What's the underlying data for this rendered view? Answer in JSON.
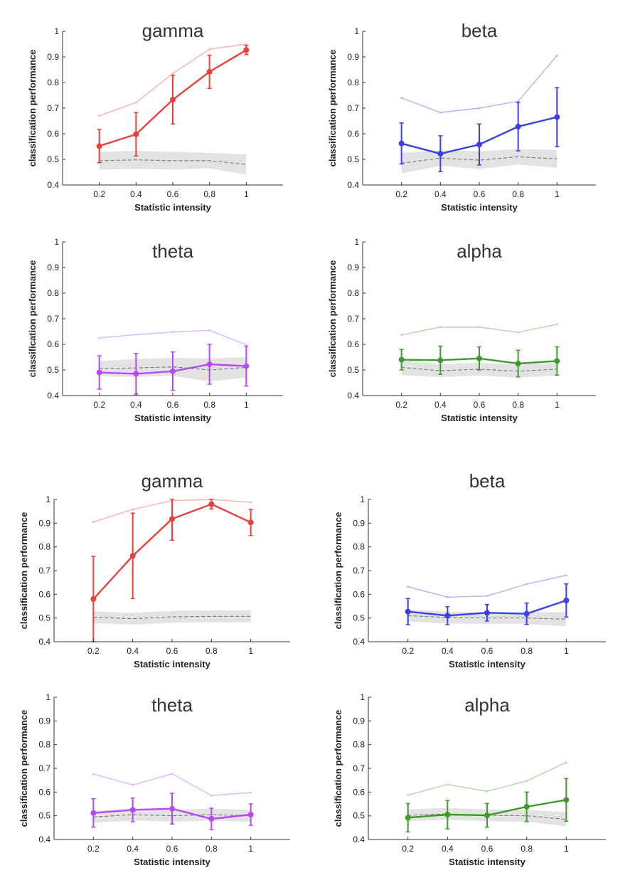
{
  "chart_data": [
    {
      "type": "line",
      "title": "gamma",
      "xlabel": "Statistic intensity",
      "ylabel": "classification performance",
      "x": [
        0.2,
        0.4,
        0.6,
        0.8,
        1
      ],
      "xticks": [
        "0.2",
        "0.4",
        "0.6",
        "0.8",
        "1"
      ],
      "yticks": [
        "0.4",
        "0.5",
        "0.6",
        "0.7",
        "0.8",
        "0.9",
        "1"
      ],
      "xlim": [
        0,
        1.2
      ],
      "ylim": [
        0.4,
        1
      ],
      "color": "#e8403a",
      "series": [
        {
          "role": "mean",
          "values": [
            0.552,
            0.598,
            0.733,
            0.842,
            0.927
          ],
          "error": [
            0.065,
            0.085,
            0.095,
            0.065,
            0.018
          ]
        },
        {
          "role": "max",
          "values": [
            0.67,
            0.722,
            0.835,
            0.93,
            0.95
          ]
        },
        {
          "role": "chance",
          "values": [
            0.495,
            0.498,
            0.495,
            0.495,
            0.48
          ],
          "band": [
            0.035,
            0.035,
            0.035,
            0.03,
            0.04
          ]
        }
      ]
    },
    {
      "type": "line",
      "title": "beta",
      "xlabel": "Statistic intensity",
      "ylabel": "classification performance",
      "x": [
        0.2,
        0.4,
        0.6,
        0.8,
        1
      ],
      "xticks": [
        "0.2",
        "0.4",
        "0.6",
        "0.8",
        "1"
      ],
      "yticks": [
        "0.4",
        "0.5",
        "0.6",
        "0.7",
        "0.8",
        "0.9",
        "1"
      ],
      "xlim": [
        0,
        1.2
      ],
      "ylim": [
        0.4,
        1
      ],
      "color": "#3b3fe6",
      "series": [
        {
          "role": "mean",
          "values": [
            0.562,
            0.522,
            0.558,
            0.628,
            0.665
          ],
          "error": [
            0.08,
            0.07,
            0.08,
            0.095,
            0.115
          ]
        },
        {
          "role": "max",
          "values": [
            0.74,
            0.683,
            0.7,
            0.727,
            0.905
          ]
        },
        {
          "role": "chance",
          "values": [
            0.485,
            0.505,
            0.497,
            0.51,
            0.502
          ],
          "band": [
            0.04,
            0.03,
            0.035,
            0.03,
            0.035
          ]
        }
      ]
    },
    {
      "type": "line",
      "title": "theta",
      "xlabel": "Statistic intensity",
      "ylabel": "classification performance",
      "x": [
        0.2,
        0.4,
        0.6,
        0.8,
        1
      ],
      "xticks": [
        "0.2",
        "0.4",
        "0.6",
        "0.8",
        "1"
      ],
      "yticks": [
        "0.4",
        "0.5",
        "0.6",
        "0.7",
        "0.8",
        "0.9",
        "1"
      ],
      "xlim": [
        0,
        1.2
      ],
      "ylim": [
        0.4,
        1
      ],
      "color": "#b44bf0",
      "series": [
        {
          "role": "mean",
          "values": [
            0.49,
            0.485,
            0.495,
            0.522,
            0.515
          ],
          "error": [
            0.065,
            0.08,
            0.075,
            0.078,
            0.078
          ]
        },
        {
          "role": "max",
          "values": [
            0.625,
            0.638,
            0.648,
            0.655,
            0.598
          ]
        },
        {
          "role": "chance",
          "values": [
            0.505,
            0.508,
            0.512,
            0.5,
            0.51
          ],
          "band": [
            0.03,
            0.035,
            0.035,
            0.045,
            0.04
          ]
        }
      ]
    },
    {
      "type": "line",
      "title": "alpha",
      "xlabel": "Statistic intensity",
      "ylabel": "classification performance",
      "x": [
        0.2,
        0.4,
        0.6,
        0.8,
        1
      ],
      "xticks": [
        "0.2",
        "0.4",
        "0.6",
        "0.8",
        "1"
      ],
      "yticks": [
        "0.4",
        "0.5",
        "0.6",
        "0.7",
        "0.8",
        "0.9",
        "1"
      ],
      "xlim": [
        0,
        1.2
      ],
      "ylim": [
        0.4,
        1
      ],
      "color": "#3f9a2c",
      "series": [
        {
          "role": "mean",
          "values": [
            0.54,
            0.538,
            0.545,
            0.525,
            0.535
          ],
          "error": [
            0.04,
            0.055,
            0.045,
            0.052,
            0.055
          ]
        },
        {
          "role": "max",
          "values": [
            0.637,
            0.667,
            0.667,
            0.647,
            0.678
          ]
        },
        {
          "role": "chance",
          "values": [
            0.51,
            0.497,
            0.503,
            0.495,
            0.503
          ],
          "band": [
            0.03,
            0.025,
            0.025,
            0.025,
            0.025
          ]
        }
      ]
    },
    {
      "type": "line",
      "title": "gamma",
      "xlabel": "Statistic intensity",
      "ylabel": "classification performance",
      "x": [
        0.2,
        0.4,
        0.6,
        0.8,
        1
      ],
      "xticks": [
        "0.2",
        "0.4",
        "0.6",
        "0.8",
        "1"
      ],
      "yticks": [
        "0.4",
        "0.5",
        "0.6",
        "0.7",
        "0.8",
        "0.9",
        "1"
      ],
      "xlim": [
        0,
        1.2
      ],
      "ylim": [
        0.4,
        1
      ],
      "color": "#e8403a",
      "series": [
        {
          "role": "mean",
          "values": [
            0.58,
            0.762,
            0.918,
            0.98,
            0.903
          ],
          "error": [
            0.18,
            0.18,
            0.09,
            0.02,
            0.055
          ]
        },
        {
          "role": "max",
          "values": [
            0.905,
            0.958,
            0.995,
            1.0,
            0.988
          ]
        },
        {
          "role": "chance",
          "values": [
            0.503,
            0.497,
            0.505,
            0.507,
            0.507
          ],
          "band": [
            0.025,
            0.025,
            0.025,
            0.025,
            0.025
          ]
        }
      ]
    },
    {
      "type": "line",
      "title": "beta",
      "xlabel": "Statistic intensity",
      "ylabel": "classification performance",
      "x": [
        0.2,
        0.4,
        0.6,
        0.8,
        1
      ],
      "xticks": [
        "0.2",
        "0.4",
        "0.6",
        "0.8",
        "1"
      ],
      "yticks": [
        "0.4",
        "0.5",
        "0.6",
        "0.7",
        "0.8",
        "0.9",
        "1"
      ],
      "xlim": [
        0,
        1.2
      ],
      "ylim": [
        0.4,
        1
      ],
      "color": "#3b3fe6",
      "series": [
        {
          "role": "mean",
          "values": [
            0.527,
            0.51,
            0.522,
            0.518,
            0.574
          ],
          "error": [
            0.055,
            0.038,
            0.035,
            0.045,
            0.07
          ]
        },
        {
          "role": "max",
          "values": [
            0.632,
            0.588,
            0.593,
            0.643,
            0.68
          ]
        },
        {
          "role": "chance",
          "values": [
            0.51,
            0.502,
            0.5,
            0.5,
            0.495
          ],
          "band": [
            0.025,
            0.025,
            0.025,
            0.025,
            0.03
          ]
        }
      ]
    },
    {
      "type": "line",
      "title": "theta",
      "xlabel": "Statistic intensity",
      "ylabel": "classification performance",
      "x": [
        0.2,
        0.4,
        0.6,
        0.8,
        1
      ],
      "xticks": [
        "0.2",
        "0.4",
        "0.6",
        "0.8",
        "1"
      ],
      "yticks": [
        "0.4",
        "0.5",
        "0.6",
        "0.7",
        "0.8",
        "0.9",
        "1"
      ],
      "xlim": [
        0,
        1.2
      ],
      "ylim": [
        0.4,
        1
      ],
      "color": "#b44bf0",
      "series": [
        {
          "role": "mean",
          "values": [
            0.512,
            0.525,
            0.53,
            0.487,
            0.505
          ],
          "error": [
            0.06,
            0.05,
            0.065,
            0.045,
            0.045
          ]
        },
        {
          "role": "max",
          "values": [
            0.676,
            0.63,
            0.677,
            0.585,
            0.598
          ]
        },
        {
          "role": "chance",
          "values": [
            0.495,
            0.505,
            0.5,
            0.505,
            0.5
          ],
          "band": [
            0.025,
            0.025,
            0.025,
            0.025,
            0.025
          ]
        }
      ]
    },
    {
      "type": "line",
      "title": "alpha",
      "xlabel": "Statistic intensity",
      "ylabel": "classification performance",
      "x": [
        0.2,
        0.4,
        0.6,
        0.8,
        1
      ],
      "xticks": [
        "0.2",
        "0.4",
        "0.6",
        "0.8",
        "1"
      ],
      "yticks": [
        "0.4",
        "0.5",
        "0.6",
        "0.7",
        "0.8",
        "0.9",
        "1"
      ],
      "xlim": [
        0,
        1.2
      ],
      "ylim": [
        0.4,
        1
      ],
      "color": "#3f9a2c",
      "series": [
        {
          "role": "mean",
          "values": [
            0.492,
            0.505,
            0.502,
            0.538,
            0.567
          ],
          "error": [
            0.06,
            0.06,
            0.05,
            0.062,
            0.09
          ]
        },
        {
          "role": "max",
          "values": [
            0.587,
            0.632,
            0.603,
            0.647,
            0.725
          ]
        },
        {
          "role": "chance",
          "values": [
            0.502,
            0.508,
            0.502,
            0.5,
            0.485
          ],
          "band": [
            0.025,
            0.025,
            0.025,
            0.025,
            0.03
          ]
        }
      ]
    }
  ]
}
